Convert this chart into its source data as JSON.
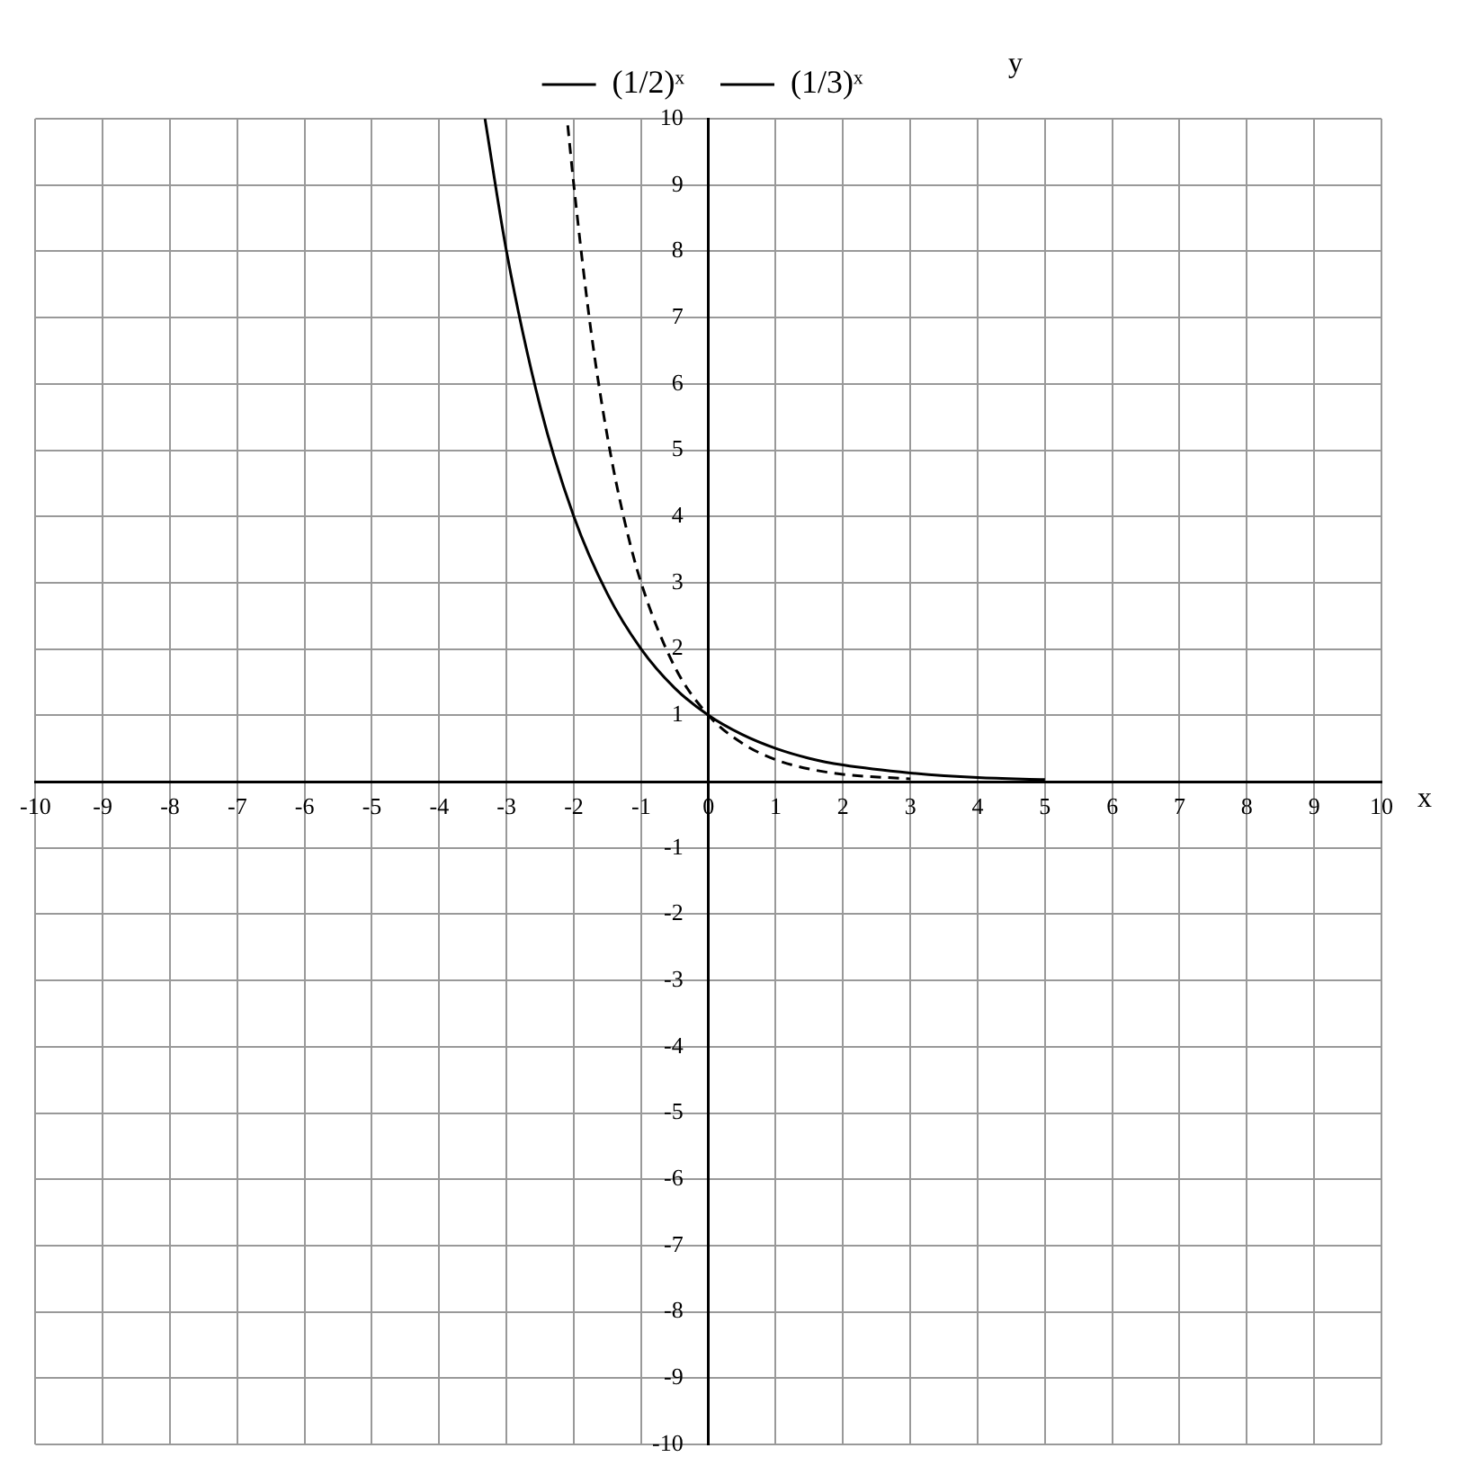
{
  "chart_data": {
    "type": "line",
    "xlabel": "x",
    "ylabel": "y",
    "xlim": [
      -10,
      10
    ],
    "ylim": [
      -10,
      10
    ],
    "xticks": [
      -10,
      -9,
      -8,
      -7,
      -6,
      -5,
      -4,
      -3,
      -2,
      -1,
      0,
      1,
      2,
      3,
      4,
      5,
      6,
      7,
      8,
      9,
      10
    ],
    "yticks": [
      -10,
      -9,
      -8,
      -7,
      -6,
      -5,
      -4,
      -3,
      -2,
      -1,
      1,
      2,
      3,
      4,
      5,
      6,
      7,
      8,
      9,
      10
    ],
    "grid": true,
    "legend": "top",
    "marker": "none",
    "series": [
      {
        "name": "(1/2)ˣ",
        "color": "#000000",
        "line_style": "solid",
        "x": [
          -3.32,
          -3,
          -2.5,
          -2,
          -1.5,
          -1,
          -0.5,
          0,
          0.5,
          1,
          1.5,
          2,
          3,
          4,
          5
        ],
        "values": [
          10,
          8,
          5.66,
          4,
          2.83,
          2,
          1.41,
          1,
          0.71,
          0.5,
          0.35,
          0.25,
          0.13,
          0.06,
          0.03
        ]
      },
      {
        "name": "(1/3)ˣ",
        "color": "#000000",
        "line_style": "dashed",
        "x": [
          -2.09,
          -2,
          -1.75,
          -1.5,
          -1.25,
          -1,
          -0.5,
          0,
          0.5,
          1,
          1.5,
          2,
          3
        ],
        "values": [
          9.9,
          9,
          6.84,
          5.2,
          3.95,
          3,
          1.73,
          1,
          0.58,
          0.33,
          0.19,
          0.11,
          0.04
        ]
      }
    ]
  }
}
